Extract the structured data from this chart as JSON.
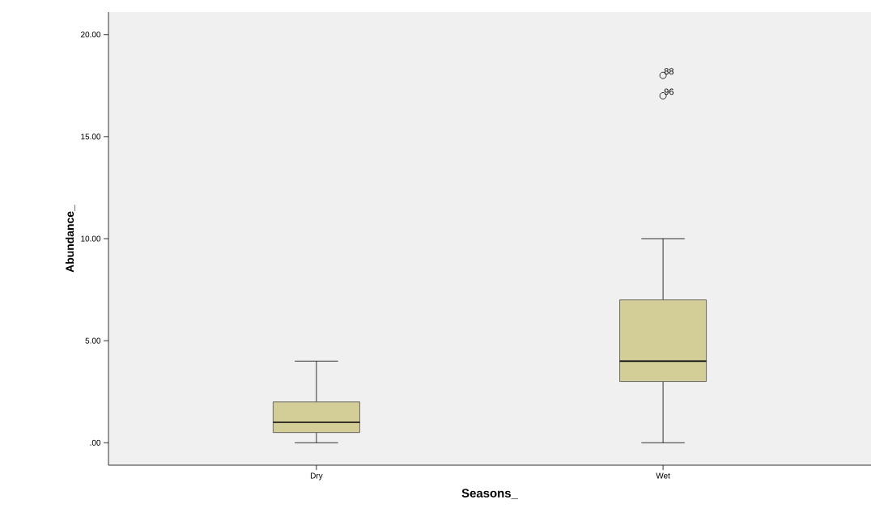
{
  "chart_data": {
    "type": "box",
    "xlabel": "Seasons_",
    "ylabel": "Abundance_",
    "categories": [
      "Dry",
      "Wet"
    ],
    "color": "#d3ce97",
    "boxes": [
      {
        "low": 0,
        "q1": 0.5,
        "median": 1,
        "q3": 2,
        "high": 4
      },
      {
        "low": 0,
        "q1": 3,
        "median": 4,
        "q3": 7,
        "high": 10,
        "outliers": [
          18,
          17
        ]
      }
    ],
    "ylim": [
      -1.1,
      21.1
    ],
    "yticks": [
      {
        "value": 0,
        "label": ".00"
      },
      {
        "value": 5,
        "label": "5.00"
      },
      {
        "value": 10,
        "label": "10.00"
      },
      {
        "value": 15,
        "label": "15.00"
      },
      {
        "value": 20,
        "label": "20.00"
      }
    ],
    "marker": "circle",
    "annotations": [
      "88",
      "96"
    ]
  }
}
